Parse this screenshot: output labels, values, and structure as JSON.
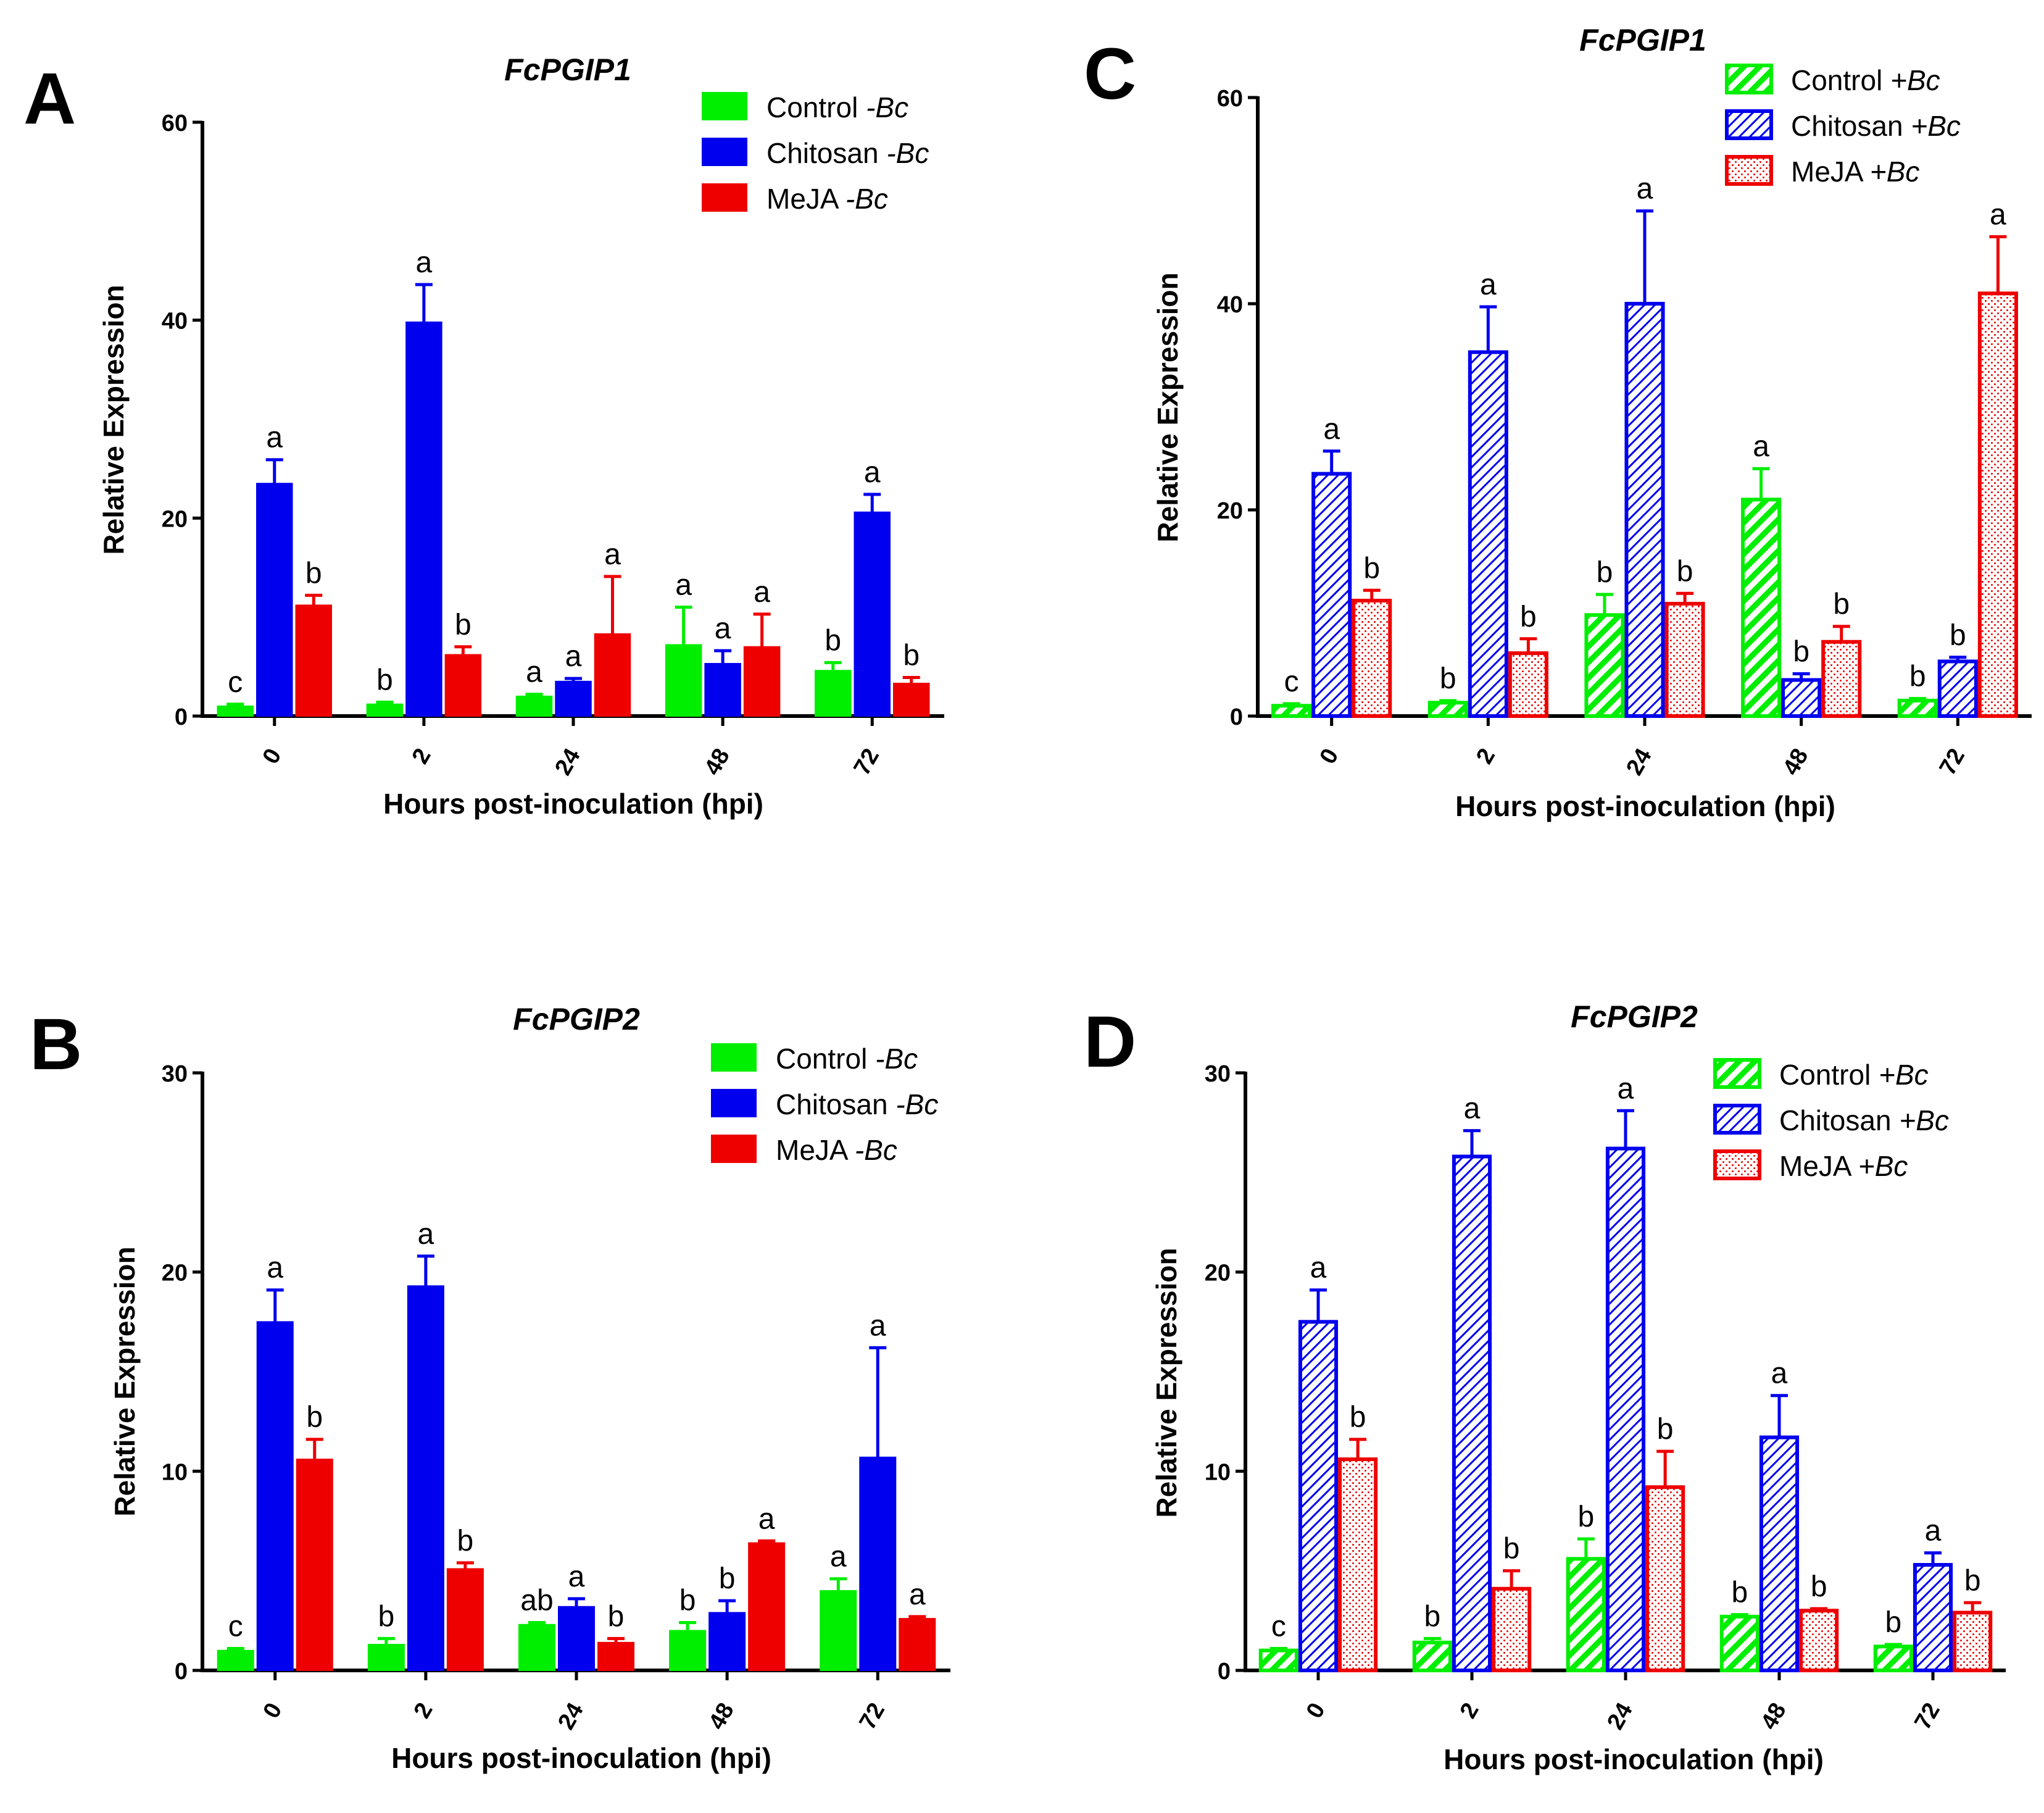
{
  "figure": {
    "colors": {
      "control": "#00ee00",
      "chitosan": "#0000ee",
      "meja": "#ee0000"
    }
  },
  "chart_data": [
    {
      "panel": "A",
      "type": "bar",
      "title": "FcPGIP1",
      "xlabel": "Hours post-inoculation (hpi)",
      "ylabel": "Relative Expression",
      "ylim": [
        0,
        60
      ],
      "yticks": [
        0,
        20,
        40,
        60
      ],
      "categories": [
        "0",
        "2",
        "24",
        "48",
        "72"
      ],
      "legend_position": "top-right",
      "style": "solid",
      "series": [
        {
          "key": "control",
          "name": "Control ",
          "suffix": "-Bc",
          "values": [
            1.0,
            1.2,
            2.0,
            7.2,
            4.6
          ],
          "errors": [
            0.2,
            0.2,
            0.2,
            3.8,
            0.8
          ],
          "labels": [
            "c",
            "b",
            "a",
            "a",
            "b"
          ]
        },
        {
          "key": "chitosan",
          "name": "Chitosan ",
          "suffix": "-Bc",
          "values": [
            23.5,
            39.8,
            3.5,
            5.3,
            20.6
          ],
          "errors": [
            2.4,
            3.8,
            0.3,
            1.3,
            1.8
          ],
          "labels": [
            "a",
            "a",
            "a",
            "a",
            "a"
          ]
        },
        {
          "key": "meja",
          "name": "MeJA ",
          "suffix": "-Bc",
          "values": [
            11.2,
            6.2,
            8.3,
            7.0,
            3.3
          ],
          "errors": [
            1.0,
            0.8,
            5.8,
            3.3,
            0.6
          ],
          "labels": [
            "b",
            "b",
            "a",
            "a",
            "b"
          ]
        }
      ]
    },
    {
      "panel": "C",
      "type": "bar",
      "title": "FcPGIP1",
      "xlabel": "Hours post-inoculation (hpi)",
      "ylabel": "Relative Expression",
      "ylim": [
        0,
        60
      ],
      "yticks": [
        0,
        20,
        40,
        60
      ],
      "categories": [
        "0",
        "2",
        "24",
        "48",
        "72"
      ],
      "legend_position": "top-right",
      "style": "patterned",
      "series": [
        {
          "key": "control",
          "name": "Control ",
          "suffix": "+Bc",
          "values": [
            1.0,
            1.3,
            9.8,
            21.0,
            1.5
          ],
          "errors": [
            0.2,
            0.2,
            2.0,
            3.0,
            0.2
          ],
          "labels": [
            "c",
            "b",
            "b",
            "a",
            "b"
          ]
        },
        {
          "key": "chitosan",
          "name": "Chitosan ",
          "suffix": "+Bc",
          "values": [
            23.5,
            35.3,
            40.0,
            3.5,
            5.3
          ],
          "errors": [
            2.2,
            4.4,
            9.0,
            0.6,
            0.4
          ],
          "labels": [
            "a",
            "a",
            "a",
            "b",
            "b"
          ]
        },
        {
          "key": "meja",
          "name": "MeJA ",
          "suffix": "+Bc",
          "values": [
            11.2,
            6.1,
            10.9,
            7.2,
            41.0
          ],
          "errors": [
            1.0,
            1.4,
            1.0,
            1.5,
            5.5
          ],
          "labels": [
            "b",
            "b",
            "b",
            "b",
            "a"
          ]
        }
      ]
    },
    {
      "panel": "B",
      "type": "bar",
      "title": "FcPGIP2",
      "xlabel": "Hours post-inoculation (hpi)",
      "ylabel": "Relative Expression",
      "ylim": [
        0,
        30
      ],
      "yticks": [
        0,
        10,
        20,
        30
      ],
      "categories": [
        "0",
        "2",
        "24",
        "48",
        "72"
      ],
      "legend_position": "top-right",
      "style": "solid",
      "series": [
        {
          "key": "control",
          "name": "Control ",
          "suffix": "-Bc",
          "values": [
            1.0,
            1.3,
            2.3,
            2.0,
            4.0
          ],
          "errors": [
            0.1,
            0.3,
            0.1,
            0.4,
            0.6
          ],
          "labels": [
            "c",
            "b",
            "ab",
            "b",
            "a"
          ]
        },
        {
          "key": "chitosan",
          "name": "Chitosan ",
          "suffix": "-Bc",
          "values": [
            17.5,
            19.3,
            3.2,
            2.9,
            10.7
          ],
          "errors": [
            1.6,
            1.5,
            0.4,
            0.6,
            5.5
          ],
          "labels": [
            "a",
            "a",
            "a",
            "b",
            "a"
          ]
        },
        {
          "key": "meja",
          "name": "MeJA ",
          "suffix": "-Bc",
          "values": [
            10.6,
            5.1,
            1.4,
            6.4,
            2.6
          ],
          "errors": [
            1.0,
            0.3,
            0.2,
            0.1,
            0.1
          ],
          "labels": [
            "b",
            "b",
            "b",
            "a",
            "a"
          ]
        }
      ]
    },
    {
      "panel": "D",
      "type": "bar",
      "title": "FcPGIP2",
      "xlabel": "Hours post-inoculation (hpi)",
      "ylabel": "Relative Expression",
      "ylim": [
        0,
        30
      ],
      "yticks": [
        0,
        10,
        20,
        30
      ],
      "categories": [
        "0",
        "2",
        "24",
        "48",
        "72"
      ],
      "legend_position": "top-right",
      "style": "patterned",
      "series": [
        {
          "key": "control",
          "name": "Control ",
          "suffix": "+Bc",
          "values": [
            1.0,
            1.4,
            5.6,
            2.7,
            1.2
          ],
          "errors": [
            0.1,
            0.2,
            1.0,
            0.1,
            0.1
          ],
          "labels": [
            "c",
            "b",
            "b",
            "b",
            "b"
          ]
        },
        {
          "key": "chitosan",
          "name": "Chitosan ",
          "suffix": "+Bc",
          "values": [
            17.5,
            25.8,
            26.2,
            11.7,
            5.3
          ],
          "errors": [
            1.6,
            1.3,
            1.9,
            2.1,
            0.6
          ],
          "labels": [
            "a",
            "a",
            "a",
            "a",
            "a"
          ]
        },
        {
          "key": "meja",
          "name": "MeJA ",
          "suffix": "+Bc",
          "values": [
            10.6,
            4.1,
            9.2,
            3.0,
            2.9
          ],
          "errors": [
            1.0,
            0.9,
            1.8,
            0.1,
            0.5
          ],
          "labels": [
            "b",
            "b",
            "b",
            "b",
            "b"
          ]
        }
      ]
    }
  ]
}
